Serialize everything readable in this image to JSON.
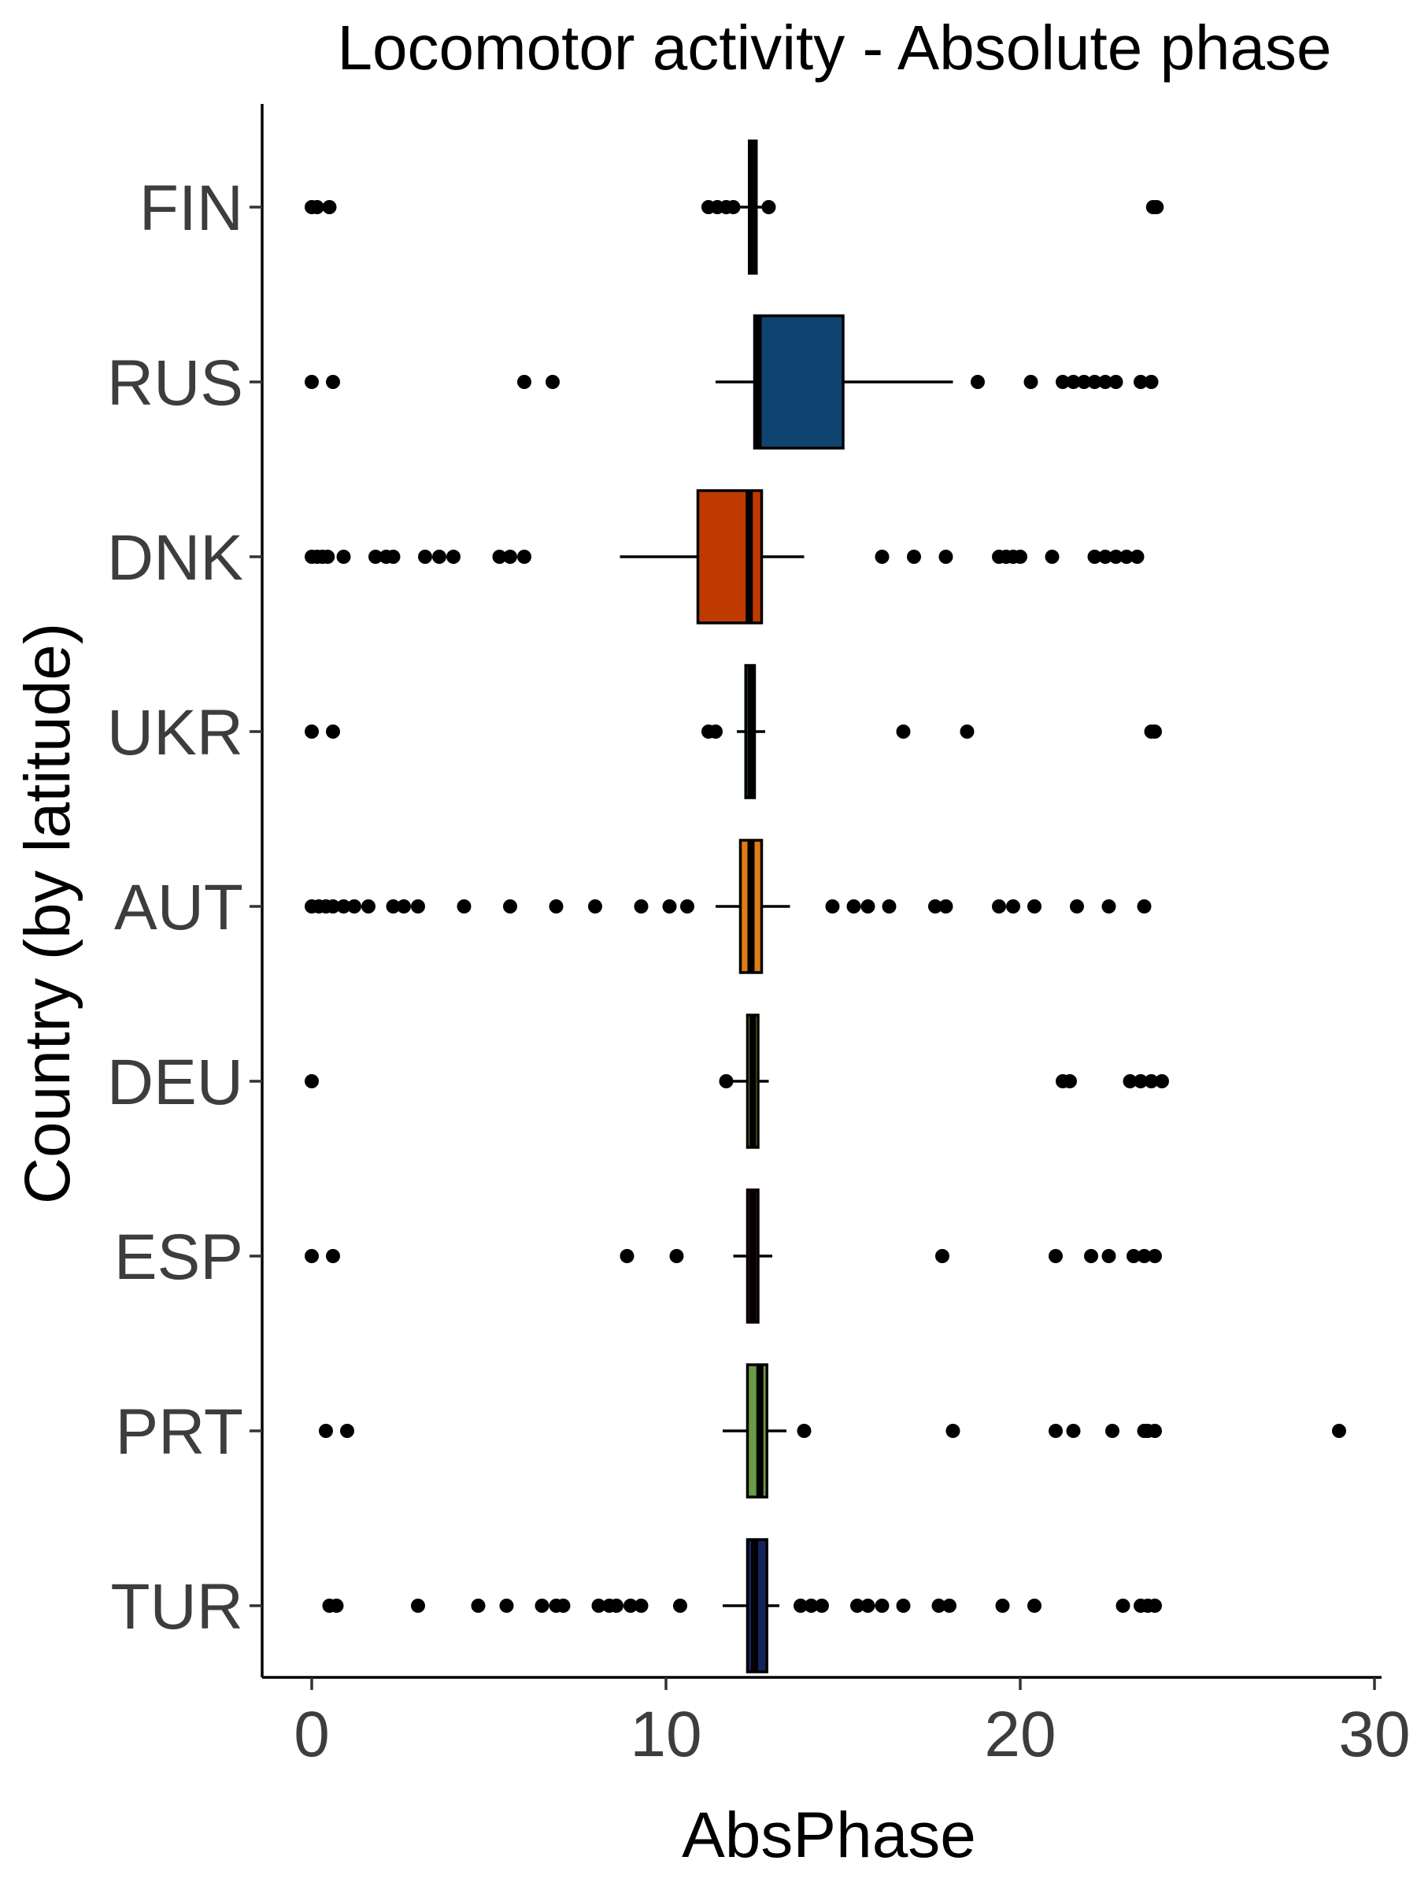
{
  "chart_data": {
    "type": "boxplot",
    "orientation": "horizontal",
    "title": "Locomotor activity - Absolute phase",
    "xlabel": "AbsPhase",
    "ylabel": "Country (by latitude)",
    "xlim": [
      -1.4,
      30.2
    ],
    "xticks": [
      0,
      10,
      20,
      30
    ],
    "grid": false,
    "legend": "none",
    "series": [
      {
        "category": "FIN",
        "color": "#000000",
        "q1": 12.35,
        "median": 12.45,
        "q3": 12.55,
        "whisker_low": 12.0,
        "whisker_high": 12.9,
        "outliers": [
          0.0,
          0.15,
          0.5,
          11.2,
          11.45,
          11.7,
          11.9,
          12.9,
          23.75,
          23.85
        ]
      },
      {
        "category": "RUS",
        "color": "#0f4470",
        "q1": 12.5,
        "median": 12.6,
        "q3": 15.0,
        "whisker_low": 11.4,
        "whisker_high": 18.1,
        "outliers": [
          0.0,
          0.6,
          6.0,
          6.8,
          18.8,
          20.3,
          21.2,
          21.5,
          21.8,
          22.1,
          22.4,
          22.7,
          23.4,
          23.7
        ]
      },
      {
        "category": "DNK",
        "color": "#bf3a00",
        "q1": 10.9,
        "median": 12.35,
        "q3": 12.7,
        "whisker_low": 8.7,
        "whisker_high": 13.9,
        "outliers": [
          0.0,
          0.15,
          0.3,
          0.45,
          0.9,
          1.8,
          2.1,
          2.3,
          3.2,
          3.6,
          4.0,
          5.3,
          5.6,
          6.0,
          16.1,
          17.0,
          17.9,
          19.4,
          19.6,
          19.8,
          20.0,
          20.9,
          22.1,
          22.4,
          22.7,
          23.0,
          23.3
        ]
      },
      {
        "category": "UKR",
        "color": "#1f7898",
        "q1": 12.25,
        "median": 12.4,
        "q3": 12.5,
        "whisker_low": 12.0,
        "whisker_high": 12.8,
        "outliers": [
          0.0,
          0.6,
          11.2,
          11.4,
          16.7,
          18.5,
          23.7,
          23.8
        ]
      },
      {
        "category": "AUT",
        "color": "#e07b16",
        "q1": 12.1,
        "median": 12.4,
        "q3": 12.7,
        "whisker_low": 11.4,
        "whisker_high": 13.5,
        "outliers": [
          0.0,
          0.2,
          0.4,
          0.6,
          0.9,
          1.2,
          1.6,
          2.3,
          2.6,
          3.0,
          4.3,
          5.6,
          6.9,
          8.0,
          9.3,
          10.1,
          10.6,
          14.7,
          15.3,
          15.7,
          16.3,
          17.6,
          17.9,
          19.4,
          19.8,
          20.4,
          21.6,
          22.5,
          23.5
        ]
      },
      {
        "category": "DEU",
        "color": "#ffdf4a",
        "q1": 12.3,
        "median": 12.45,
        "q3": 12.6,
        "whisker_low": 11.8,
        "whisker_high": 12.9,
        "outliers": [
          0.0,
          11.7,
          21.2,
          21.4,
          23.1,
          23.4,
          23.7,
          24.0
        ]
      },
      {
        "category": "ESP",
        "color": "#9a1212",
        "q1": 12.3,
        "median": 12.45,
        "q3": 12.6,
        "whisker_low": 11.9,
        "whisker_high": 13.0,
        "outliers": [
          0.0,
          0.6,
          8.9,
          10.3,
          17.8,
          21.0,
          22.0,
          22.5,
          23.2,
          23.5,
          23.8
        ]
      },
      {
        "category": "PRT",
        "color": "#6c9a47",
        "q1": 12.3,
        "median": 12.65,
        "q3": 12.85,
        "whisker_low": 11.6,
        "whisker_high": 13.4,
        "outliers": [
          0.4,
          1.0,
          13.9,
          18.1,
          21.0,
          21.5,
          22.6,
          23.5,
          23.6,
          23.8,
          29.0
        ]
      },
      {
        "category": "TUR",
        "color": "#14235a",
        "q1": 12.3,
        "median": 12.5,
        "q3": 12.85,
        "whisker_low": 11.6,
        "whisker_high": 13.2,
        "outliers": [
          0.5,
          0.7,
          3.0,
          4.7,
          5.5,
          6.5,
          6.9,
          7.1,
          8.1,
          8.4,
          8.6,
          9.0,
          9.3,
          10.4,
          13.8,
          14.1,
          14.4,
          15.4,
          15.7,
          16.1,
          16.7,
          17.7,
          18.0,
          19.5,
          20.4,
          22.9,
          23.4,
          23.6,
          23.8
        ]
      }
    ]
  }
}
